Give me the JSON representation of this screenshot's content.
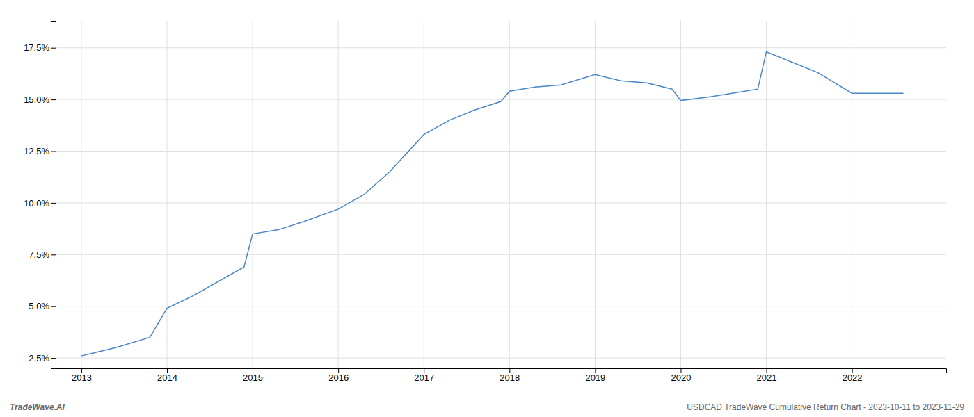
{
  "chart_data": {
    "type": "line",
    "x": [
      2013,
      2013.4,
      2013.8,
      2014,
      2014.3,
      2014.6,
      2014.9,
      2015,
      2015.3,
      2015.6,
      2016,
      2016.3,
      2016.6,
      2017,
      2017.3,
      2017.6,
      2017.9,
      2018,
      2018.3,
      2018.6,
      2019,
      2019.3,
      2019.6,
      2019.9,
      2020,
      2020.3,
      2020.6,
      2020.9,
      2021,
      2021.3,
      2021.6,
      2022,
      2022.3,
      2022.6
    ],
    "values": [
      2.6,
      3.0,
      3.5,
      4.9,
      5.5,
      6.2,
      6.9,
      8.5,
      8.7,
      9.1,
      9.7,
      10.4,
      11.5,
      13.3,
      14.0,
      14.5,
      14.9,
      15.4,
      15.6,
      15.7,
      16.2,
      15.9,
      15.8,
      15.5,
      14.95,
      15.1,
      15.3,
      15.5,
      17.3,
      16.8,
      16.3,
      15.3,
      15.3,
      15.3
    ],
    "color": "#4a86c8",
    "xlim": [
      2012.7,
      2023.1
    ],
    "xticks": [
      2013,
      2014,
      2015,
      2016,
      2017,
      2018,
      2019,
      2020,
      2021,
      2022
    ],
    "ylim": [
      2.0,
      18.8
    ],
    "yticks": [
      {
        "value": 2.5,
        "label": "2.5%"
      },
      {
        "value": 5.0,
        "label": "5.0%"
      },
      {
        "value": 7.5,
        "label": "7.5%"
      },
      {
        "value": 10.0,
        "label": "10.0%"
      },
      {
        "value": 12.5,
        "label": "12.5%"
      },
      {
        "value": 15.0,
        "label": "15.0%"
      },
      {
        "value": 17.5,
        "label": "17.5%"
      }
    ],
    "grid": true,
    "annotations": [
      "TradeWave.AI",
      "USDCAD TradeWave Cumulative Return Chart - 2023-10-11 to 2023-11-29"
    ]
  }
}
